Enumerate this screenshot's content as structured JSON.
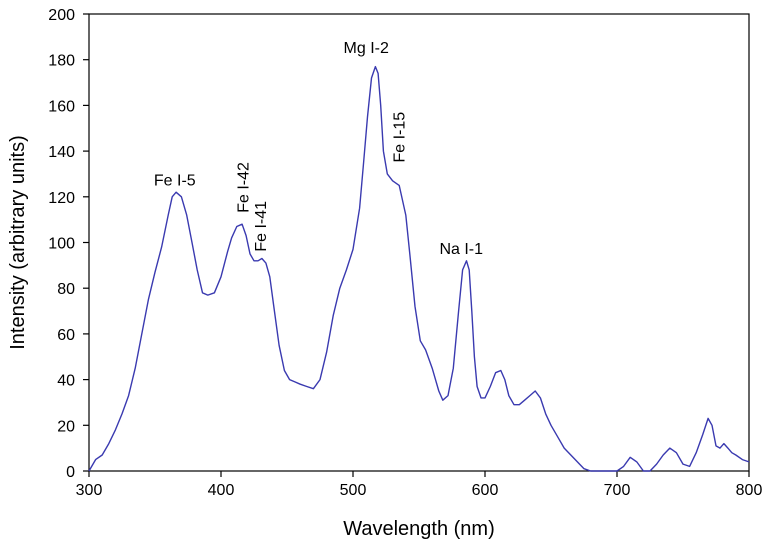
{
  "chart_data": {
    "type": "line",
    "title": "",
    "xlabel": "Wavelength (nm)",
    "ylabel": "Intensity (arbitrary units)",
    "xlim": [
      300,
      800
    ],
    "ylim": [
      0,
      200
    ],
    "x_ticks": [
      300,
      400,
      500,
      600,
      700,
      800
    ],
    "y_ticks": [
      0,
      20,
      40,
      60,
      80,
      100,
      120,
      140,
      160,
      180,
      200
    ],
    "grid": false,
    "legend": "none",
    "line_color": "#3a3ab0",
    "series": [
      {
        "x": [
          300,
          305,
          310,
          315,
          320,
          325,
          330,
          335,
          340,
          345,
          350,
          355,
          360,
          363,
          366,
          370,
          374,
          378,
          382,
          386,
          390,
          395,
          400,
          405,
          408,
          412,
          416,
          419,
          422,
          425,
          428,
          431,
          434,
          437,
          440,
          444,
          448,
          452,
          456,
          460,
          465,
          470,
          475,
          480,
          485,
          490,
          495,
          500,
          505,
          508,
          511,
          514,
          517,
          519,
          521,
          523,
          526,
          530,
          535,
          540,
          543,
          547,
          551,
          555,
          560,
          565,
          568,
          572,
          576,
          580,
          583,
          586,
          588,
          590,
          592,
          594,
          597,
          600,
          604,
          608,
          612,
          615,
          618,
          622,
          626,
          630,
          634,
          638,
          642,
          646,
          650,
          655,
          660,
          665,
          670,
          675,
          680,
          690,
          700,
          705,
          710,
          715,
          720,
          725,
          730,
          735,
          740,
          745,
          750,
          755,
          760,
          765,
          769,
          772,
          775,
          778,
          781,
          784,
          787,
          790,
          795,
          800
        ],
        "y": [
          0,
          5,
          7,
          12,
          18,
          25,
          33,
          45,
          60,
          75,
          87,
          98,
          112,
          120,
          122,
          120,
          112,
          100,
          88,
          78,
          77,
          78,
          85,
          96,
          102,
          107,
          108,
          103,
          95,
          92,
          92,
          93,
          91,
          85,
          72,
          55,
          44,
          40,
          39,
          38,
          37,
          36,
          40,
          52,
          68,
          80,
          88,
          97,
          115,
          135,
          155,
          172,
          177,
          174,
          160,
          140,
          130,
          127,
          125,
          112,
          95,
          72,
          57,
          53,
          45,
          35,
          31,
          33,
          45,
          70,
          88,
          92,
          88,
          70,
          50,
          37,
          32,
          32,
          37,
          43,
          44,
          40,
          33,
          29,
          29,
          31,
          33,
          35,
          32,
          25,
          20,
          15,
          10,
          7,
          4,
          1,
          0,
          0,
          0,
          2,
          6,
          4,
          0,
          0,
          3,
          7,
          10,
          8,
          3,
          2,
          8,
          16,
          23,
          20,
          11,
          10,
          12,
          10,
          8,
          7,
          5,
          4
        ]
      }
    ],
    "annotations": [
      {
        "text": "Fe I-5",
        "x": 365,
        "y": 125,
        "rotated": false
      },
      {
        "text": "Fe I-42",
        "x": 421,
        "y": 113,
        "rotated": true
      },
      {
        "text": "Fe I-41",
        "x": 434,
        "y": 96,
        "rotated": true
      },
      {
        "text": "Mg I-2",
        "x": 510,
        "y": 183,
        "rotated": false
      },
      {
        "text": "Fe I-15",
        "x": 539,
        "y": 135,
        "rotated": true
      },
      {
        "text": "Na I-1",
        "x": 582,
        "y": 95,
        "rotated": false
      }
    ]
  }
}
